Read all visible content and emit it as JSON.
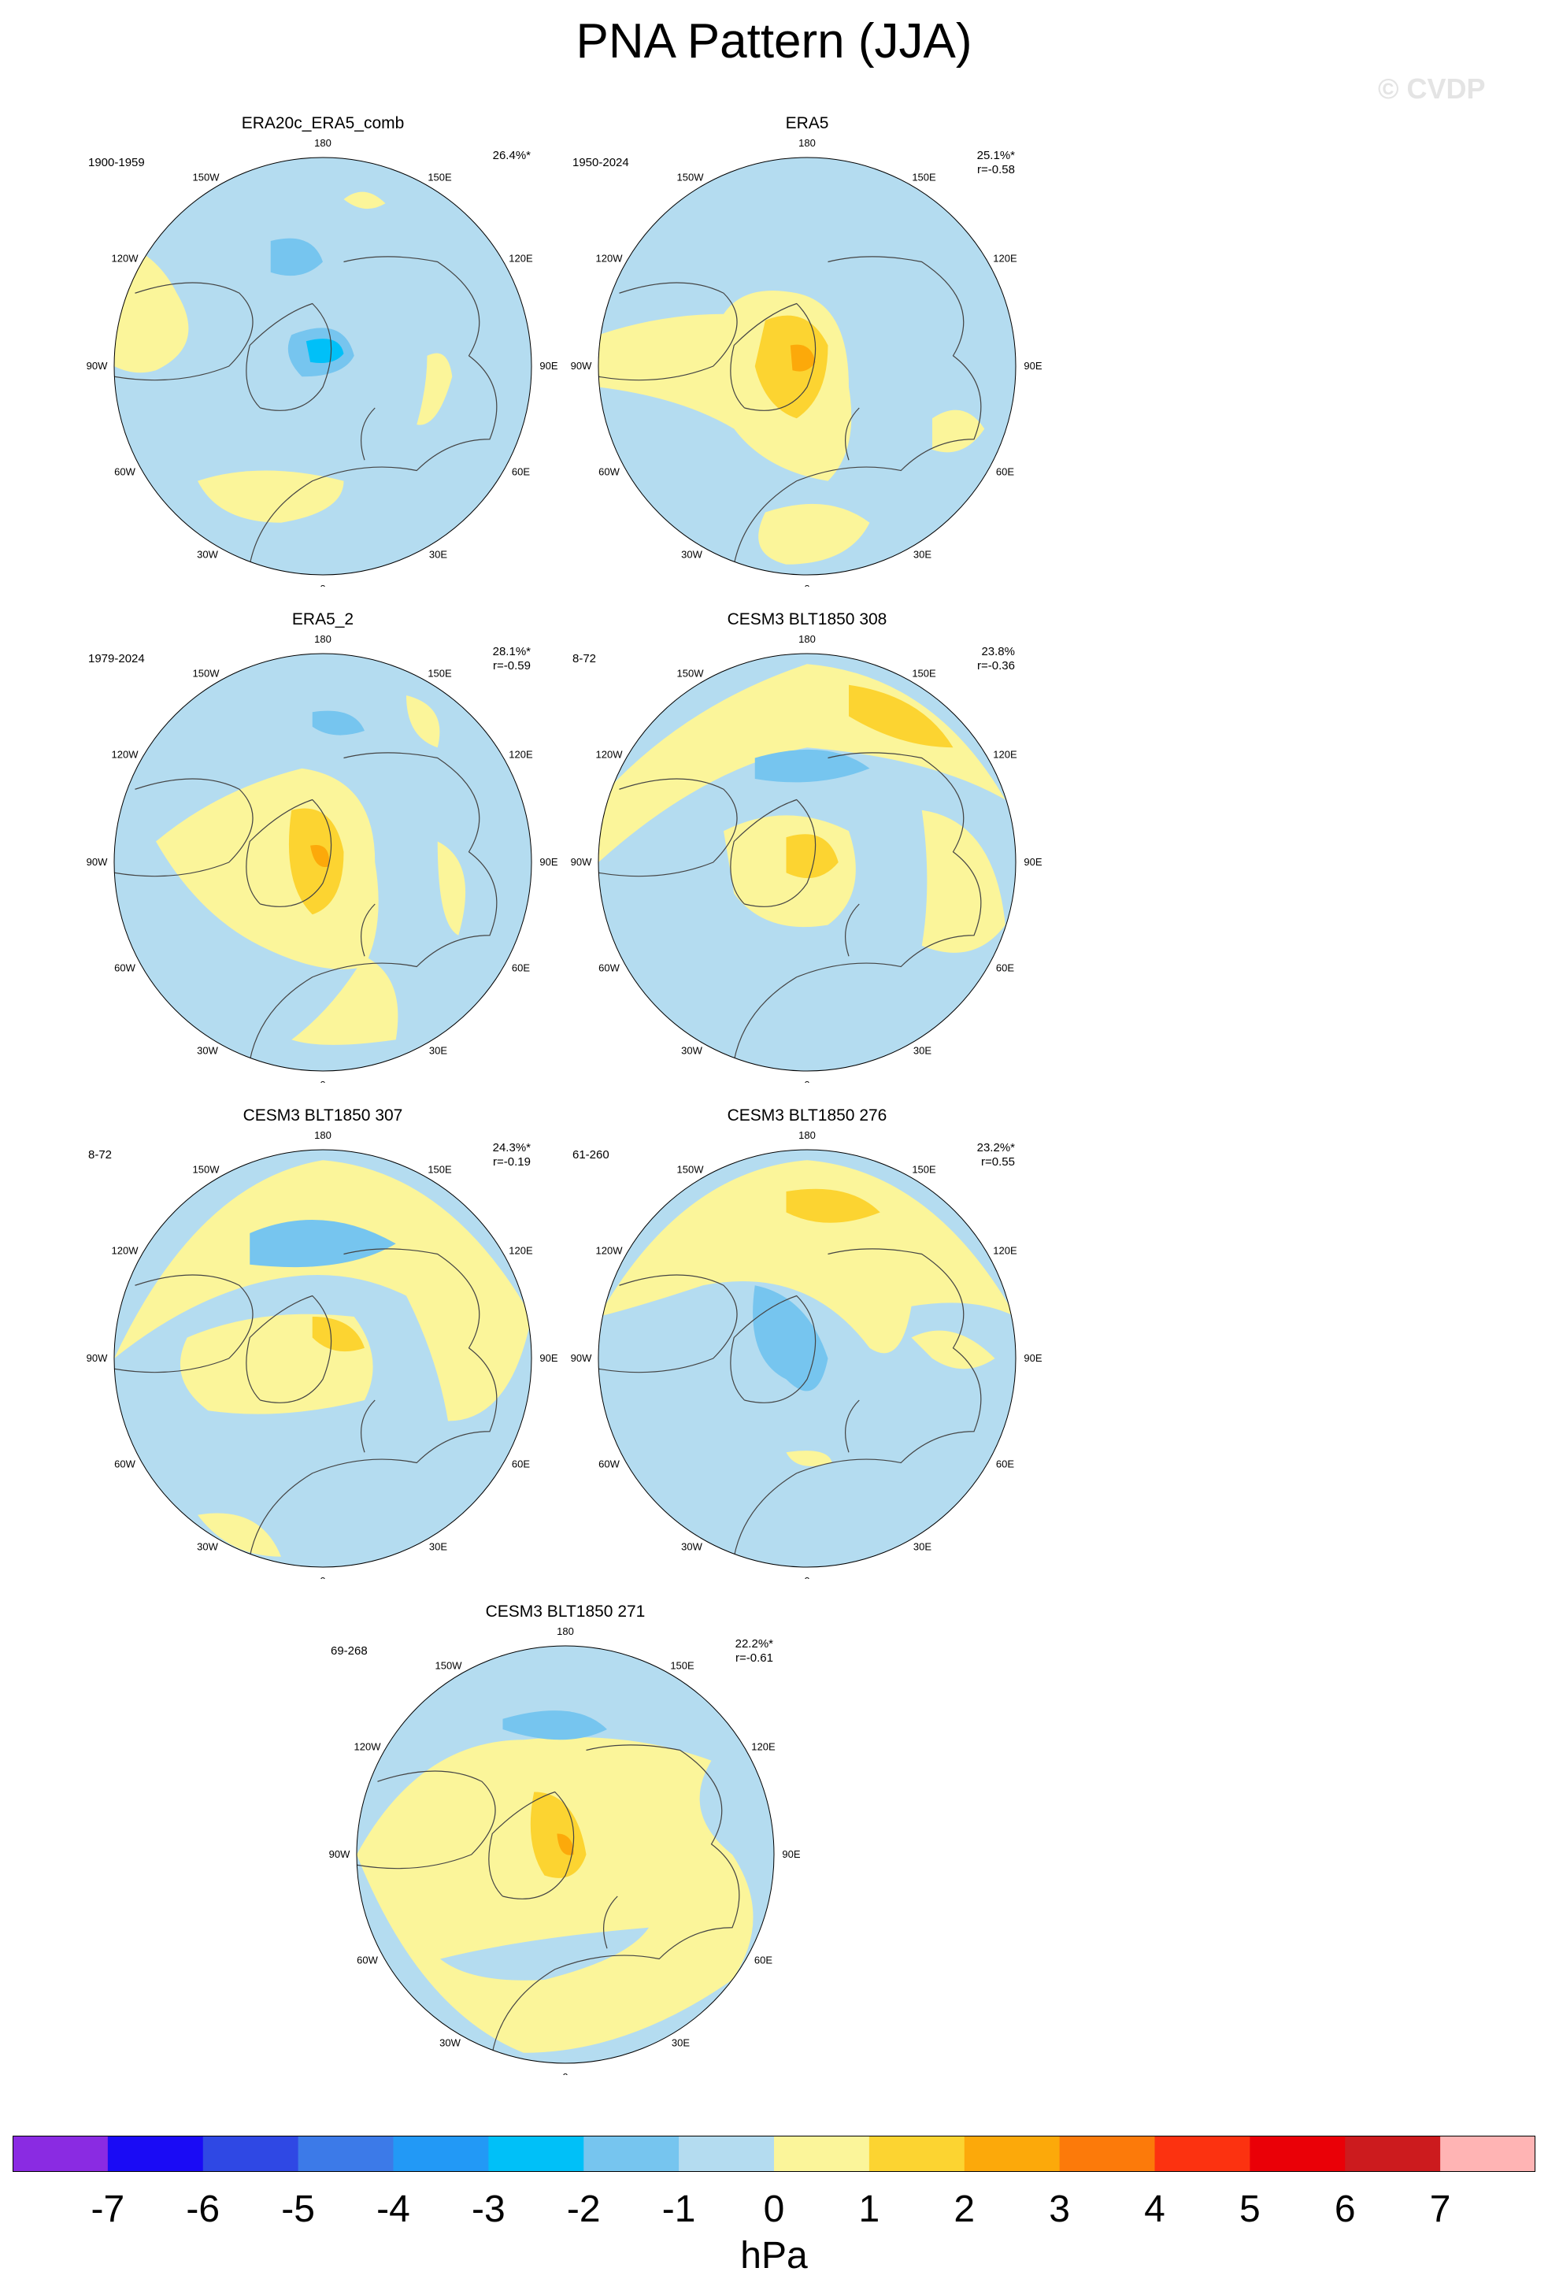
{
  "title": "PNA Pattern (JJA)",
  "watermark": "© CVDP",
  "longitude_labels": {
    "top": "180",
    "bottom": "0",
    "left": "90W",
    "right": "90E",
    "upper_left_outer": "120W",
    "upper_left_inner": "150W",
    "upper_right_inner": "150E",
    "upper_right_outer": "120E",
    "lower_left_outer": "60W",
    "lower_left_inner": "30W",
    "lower_right_inner": "30E",
    "lower_right_outer": "60E"
  },
  "panels": [
    {
      "title": "ERA20c_ERA5_comb",
      "period": "1900-1959",
      "pct": "26.4%*",
      "r": ""
    },
    {
      "title": "ERA5",
      "period": "1950-2024",
      "pct": "25.1%*",
      "r": "r=-0.58"
    },
    {
      "title": "ERA5_2",
      "period": "1979-2024",
      "pct": "28.1%*",
      "r": "r=-0.59"
    },
    {
      "title": "CESM3 BLT1850 308",
      "period": "8-72",
      "pct": "23.8%",
      "r": "r=-0.36"
    },
    {
      "title": "CESM3 BLT1850 307",
      "period": "8-72",
      "pct": "24.3%*",
      "r": "r=-0.19"
    },
    {
      "title": "CESM3 BLT1850 276",
      "period": "61-260",
      "pct": "23.2%*",
      "r": "r=0.55"
    },
    {
      "title": "CESM3 BLT1850 271",
      "period": "69-268",
      "pct": "22.2%*",
      "r": "r=-0.61"
    }
  ],
  "colorbar": {
    "unit": "hPa",
    "labels": [
      "-7",
      "-6",
      "-5",
      "-4",
      "-3",
      "-2",
      "-1",
      "0",
      "1",
      "2",
      "3",
      "4",
      "5",
      "6",
      "7"
    ],
    "colors": [
      "#8a2be2",
      "#1a0bf5",
      "#2f48e4",
      "#3c7ae8",
      "#2299f6",
      "#00c0f8",
      "#76c5ef",
      "#b4dcf0",
      "#fbf59a",
      "#fcd431",
      "#fca90a",
      "#fc7a0a",
      "#fc3210",
      "#ea0007",
      "#cc1b1e",
      "#ffb4b4"
    ]
  },
  "map_colors": {
    "land_outline": "#444444",
    "circle_outline": "#000000"
  }
}
